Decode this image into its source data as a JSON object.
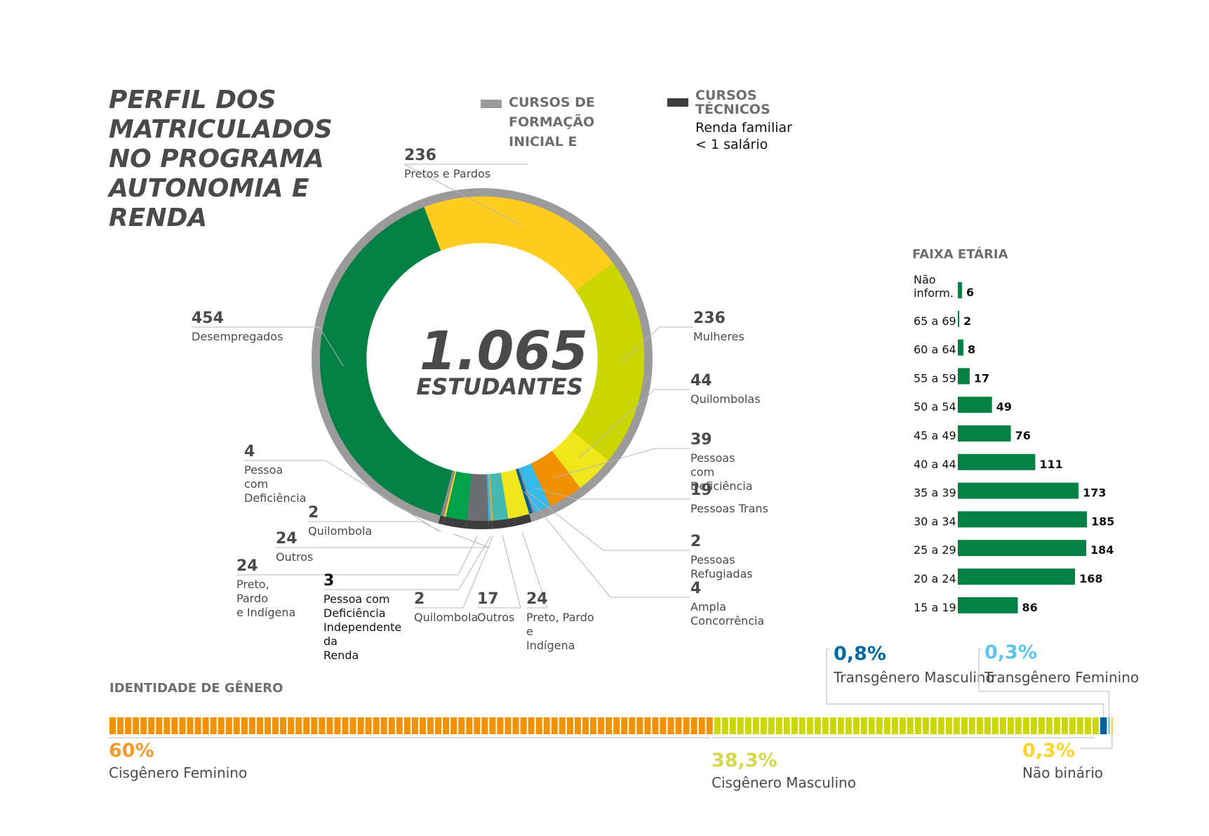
{
  "title": "PERFIL DOS\nMATRICULADOS\nNO PROGRAMA\nAUTONOMIA E\nRENDA",
  "legend": [
    {
      "heading": "CURSOS DE\nFORMAÇÃO\nINICIAL E",
      "subtext": "",
      "color": "#9b9b9b"
    },
    {
      "heading": "CURSOS\nTÉCNICOS",
      "subtext": "Renda familiar\n< 1 salário",
      "color": "#3c3c3b"
    }
  ],
  "center": {
    "value": "1.065",
    "label": "ESTUDANTES"
  },
  "chart_data": [
    {
      "type": "pie",
      "title": "Perfil dos matriculados no Programa Autonomia e Renda",
      "total": 1065,
      "total_label": "ESTUDANTES",
      "outer_ring": [
        {
          "name": "Cursos de Formação Inicial e Continuada",
          "color": "#9b9b9b"
        },
        {
          "name": "Cursos Técnicos (Renda familiar < 1 salário)",
          "color": "#3c3c3b"
        }
      ],
      "slices": [
        {
          "value": 236,
          "label": "Pretos e Pardos",
          "color": "#fecd1e",
          "group": "FIC"
        },
        {
          "value": 236,
          "label": "Mulheres",
          "color": "#ccd600",
          "group": "FIC"
        },
        {
          "value": 44,
          "label": "Quilombolas",
          "color": "#f0e61c",
          "group": "FIC"
        },
        {
          "value": 39,
          "label": "Pessoas com Deficiência",
          "color": "#f29100",
          "group": "FIC"
        },
        {
          "value": 19,
          "label": "Pessoas Trans",
          "color": "#36b9eb",
          "group": "FIC"
        },
        {
          "value": 2,
          "label": "Pessoas Refugiadas",
          "color": "#8a8c8e",
          "group": "FIC"
        },
        {
          "value": 4,
          "label": "Ampla Concorrência",
          "color": "#005f95",
          "group": "FIC"
        },
        {
          "value": 24,
          "label": "Preto, Pardo e Indígena",
          "color": "#f0e61c",
          "group": "Técnico"
        },
        {
          "value": 17,
          "label": "Outros",
          "color": "#45b8b0",
          "group": "Técnico"
        },
        {
          "value": 2,
          "label": "Quilombola",
          "color": "#f9a11b",
          "group": "Técnico"
        },
        {
          "value": 3,
          "label": "Pessoa com Deficiência Independente da Renda",
          "color": "#36b9eb",
          "group": "Técnico"
        },
        {
          "value": 24,
          "label": "Outros",
          "color": "#6d6e71",
          "group": "Técnico"
        },
        {
          "value": 24,
          "label": "Preto, Pardo e Indígena",
          "color": "#00a14b",
          "group": "Técnico"
        },
        {
          "value": 2,
          "label": "Quilombola",
          "color": "#fecd1e",
          "group": "Técnico"
        },
        {
          "value": 4,
          "label": "Pessoa com Deficiência",
          "color": "#8a8c8e",
          "group": "Técnico"
        },
        {
          "value": 454,
          "label": "Desempregados",
          "color": "#038144",
          "group": "FIC"
        }
      ]
    },
    {
      "type": "bar",
      "orientation": "horizontal",
      "title": "FAIXA ETÁRIA",
      "categories": [
        "Não inform.",
        "65 a 69",
        "60 a 64",
        "55 a 59",
        "50 a 54",
        "45 a 49",
        "40 a 44",
        "35 a 39",
        "30 a 34",
        "25 a 29",
        "20 a 24",
        "15 a 19"
      ],
      "values": [
        6,
        2,
        8,
        17,
        49,
        76,
        111,
        173,
        185,
        184,
        168,
        86
      ],
      "color": "#038144",
      "xlim": [
        0,
        185
      ]
    },
    {
      "type": "bar",
      "orientation": "stacked-horizontal",
      "title": "IDENTIDADE DE GÊNERO",
      "categories": [
        "Cisgênero Feminino",
        "Cisgênero Masculino",
        "Transgênero Masculino",
        "Transgênero Feminino",
        "Não binário"
      ],
      "values": [
        60,
        38.3,
        0.8,
        0.3,
        0.3
      ],
      "value_labels": [
        "60%",
        "38,3%",
        "0,8%",
        "0,3%",
        "0,3%"
      ],
      "colors": [
        "#f39200",
        "#ccd600",
        "#005f95",
        "#5bc5f2",
        "#ffd42a"
      ],
      "unit": "%"
    }
  ],
  "donut_labels": [
    {
      "value": "236",
      "text": "Pretos e Pardos"
    },
    {
      "value": "236",
      "text": "Mulheres"
    },
    {
      "value": "44",
      "text": "Quilombolas"
    },
    {
      "value": "39",
      "text": "Pessoas\ncom\nDeficiência"
    },
    {
      "value": "19",
      "text": "Pessoas Trans"
    },
    {
      "value": "2",
      "text": "Pessoas\nRefugiadas"
    },
    {
      "value": "4",
      "text": "Ampla\nConcorrência"
    },
    {
      "value": "24",
      "text": "Preto, Pardo\ne\nIndígena"
    },
    {
      "value": "17",
      "text": "Outros"
    },
    {
      "value": "2",
      "text": "Quilombola"
    },
    {
      "value": "3",
      "text": "Pessoa com\nDeficiência\nIndependente\nda\nRenda"
    },
    {
      "value": "24",
      "text": "Preto,\nPardo\ne Indígena"
    },
    {
      "value": "24",
      "text": "Outros"
    },
    {
      "value": "2",
      "text": "Quilombola"
    },
    {
      "value": "4",
      "text": "Pessoa\ncom\nDeficiência"
    },
    {
      "value": "454",
      "text": "Desempregados"
    }
  ],
  "age": {
    "title": "FAIXA ETÁRIA"
  },
  "gender": {
    "title": "IDENTIDADE DE GÊNERO"
  }
}
